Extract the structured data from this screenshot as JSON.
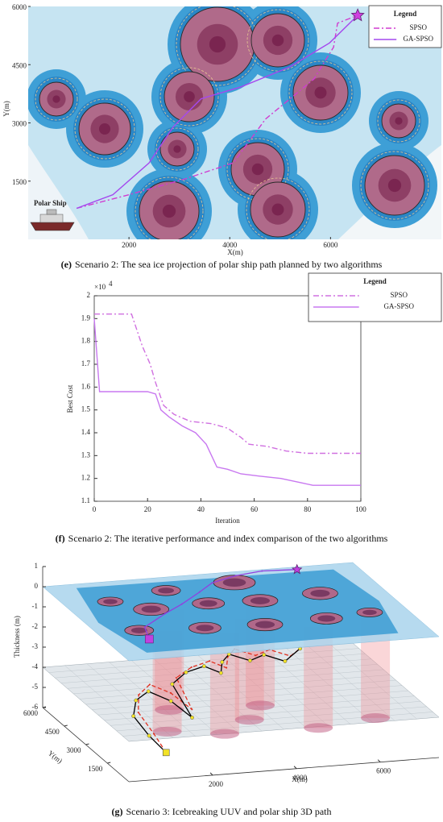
{
  "chart_data": [
    {
      "type": "line",
      "caption_label": "(e)",
      "caption": "Scenario 2: The sea ice projection of polar ship path planned by two algorithms",
      "xlabel": "X(m)",
      "ylabel": "Y(m)",
      "xlim": [
        0,
        8200
      ],
      "ylim": [
        0,
        6000
      ],
      "xticks": [
        2000,
        4000,
        6000
      ],
      "yticks": [
        1500,
        3000,
        4500,
        6000
      ],
      "legend_title": "Legend",
      "legend": "upper right",
      "annotation": "Polar Ship",
      "series": [
        {
          "name": "SPSO",
          "color": "#d03cd0",
          "style": "dashdot",
          "x": [
            960,
            2000,
            3120,
            4070,
            4710,
            5670,
            6060,
            6140,
            6540
          ],
          "values": [
            800,
            1150,
            1560,
            1970,
            3100,
            4130,
            4950,
            5570,
            5770
          ]
        },
        {
          "name": "GA-SPSO",
          "color": "#a448ee",
          "style": "solid",
          "x": [
            960,
            1680,
            2400,
            2880,
            3430,
            4230,
            5190,
            5980,
            6460,
            6540
          ],
          "values": [
            800,
            1150,
            1970,
            2900,
            3620,
            3930,
            4440,
            5060,
            5670,
            5770
          ]
        }
      ]
    },
    {
      "type": "line",
      "caption_label": "(f)",
      "caption": "Scenario 2: The iterative performance and index comparison of the two algorithms",
      "xlabel": "Iteration",
      "ylabel": "Best Cost",
      "y_multiplier": {
        "base": "×10",
        "exponent": "4"
      },
      "xlim": [
        0,
        100
      ],
      "ylim": [
        1.1,
        2
      ],
      "xticks": [
        0,
        20,
        40,
        60,
        80,
        100
      ],
      "yticks": [
        1.1,
        1.2,
        1.3,
        1.4,
        1.5,
        1.6,
        1.7,
        1.8,
        1.9,
        2
      ],
      "legend_title": "Legend",
      "legend": "upper right",
      "series": [
        {
          "name": "SPSO",
          "color": "#d070e0",
          "style": "dashdot",
          "x": [
            0,
            14,
            18,
            21,
            23,
            26,
            30,
            36,
            44,
            50,
            55,
            58,
            65,
            72,
            80,
            100
          ],
          "values": [
            1.92,
            1.92,
            1.78,
            1.7,
            1.62,
            1.52,
            1.48,
            1.45,
            1.44,
            1.42,
            1.38,
            1.35,
            1.34,
            1.32,
            1.31,
            1.31
          ]
        },
        {
          "name": "GA-SPSO",
          "color": "#c878f0",
          "style": "solid",
          "x": [
            0,
            2,
            20,
            23,
            25,
            28,
            33,
            38,
            42,
            46,
            50,
            55,
            62,
            70,
            78,
            82,
            100
          ],
          "values": [
            1.9,
            1.58,
            1.58,
            1.57,
            1.5,
            1.47,
            1.43,
            1.4,
            1.35,
            1.25,
            1.24,
            1.22,
            1.21,
            1.2,
            1.18,
            1.17,
            1.17
          ]
        }
      ]
    },
    {
      "type": "line3d",
      "caption_label": "(g)",
      "caption": "Scenario 3: Icebreaking UUV and polar ship 3D path",
      "xlabel": "X(m)",
      "ylabel": "Y(m)",
      "zlabel": "Thickness (m)",
      "xlim": [
        0,
        7400
      ],
      "ylim": [
        0,
        6000
      ],
      "zlim": [
        -6,
        1
      ],
      "xticks": [
        2000,
        4000,
        6000
      ],
      "yticks": [
        1500,
        3000,
        4500,
        6000
      ],
      "zticks": [
        1,
        0,
        -1,
        -2,
        -3,
        -4,
        -5,
        -6
      ],
      "series": [
        {
          "color": "#9040e0",
          "style": "solid",
          "x": [
            1000,
            1200,
            2000,
            2600,
            3300,
            3800,
            4500,
            5200,
            6000
          ],
          "y": [
            1500,
            2400,
            3300,
            3900,
            4700,
            5300,
            5700,
            5900,
            5800
          ],
          "z": [
            0,
            0,
            0,
            0,
            0,
            0,
            0,
            0,
            0
          ]
        },
        {
          "color": "#e03020",
          "style": "dashed",
          "x": [
            1300,
            1250,
            1150,
            1400,
            1800,
            2200,
            2500,
            2400,
            2900,
            3400,
            3700,
            3900,
            4200,
            4600,
            5000,
            5400,
            5800
          ],
          "y": [
            1200,
            1900,
            2700,
            3400,
            3800,
            3500,
            2900,
            3700,
            4100,
            4300,
            4000,
            4500,
            4900,
            4600,
            4800,
            4500,
            5000
          ],
          "z": [
            -5.5,
            -5,
            -4.4,
            -4,
            -3.8,
            -4.1,
            -4.6,
            -3.5,
            -3.3,
            -3.2,
            -3.4,
            -3.2,
            -3.1,
            -3.3,
            -3.2,
            -3.4,
            -3.4
          ]
        },
        {
          "color": "#000000",
          "style": "solid",
          "marker_color": "#f2e226",
          "x": [
            1300,
            1100,
            1000,
            1300,
            1700,
            2100,
            2400,
            2200,
            2700,
            3200,
            3500,
            3700,
            4000,
            4400,
            4800,
            5200,
            5800
          ],
          "y": [
            1200,
            1800,
            2600,
            3300,
            3600,
            3200,
            2600,
            3400,
            3900,
            4100,
            3800,
            4300,
            4700,
            4400,
            4600,
            4300,
            5000
          ],
          "z": [
            -5.5,
            -5,
            -4.5,
            -4.2,
            -4,
            -4.3,
            -4.8,
            -3.6,
            -3.4,
            -3.3,
            -3.5,
            -3.3,
            -3.2,
            -3.4,
            -3.3,
            -3.5,
            -3.4
          ]
        }
      ]
    }
  ]
}
